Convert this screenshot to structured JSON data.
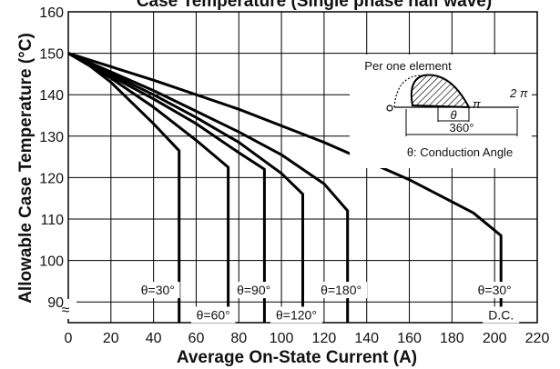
{
  "chart_data": {
    "type": "line",
    "title": "Case Temperature (Single phase half wave)",
    "xlabel": "Average On-State Current (A)",
    "ylabel": "Allowable Case Temperature (°C)",
    "xlim": [
      0,
      220
    ],
    "ylim": [
      85,
      160
    ],
    "x_ticks": [
      "0",
      "20",
      "40",
      "60",
      "80",
      "100",
      "120",
      "140",
      "160",
      "180",
      "200",
      "220"
    ],
    "y_ticks": [
      "90",
      "100",
      "110",
      "120",
      "130",
      "140",
      "150",
      "160"
    ],
    "axis_break_symbol": "≈",
    "grid": true,
    "series": [
      {
        "name": "θ=30°",
        "points": [
          [
            0,
            150
          ],
          [
            10,
            147
          ],
          [
            20,
            143
          ],
          [
            30,
            138
          ],
          [
            40,
            133
          ],
          [
            52,
            126.5
          ]
        ],
        "drop_x": 52
      },
      {
        "name": "θ=60°",
        "points": [
          [
            0,
            150
          ],
          [
            20,
            144
          ],
          [
            40,
            137
          ],
          [
            60,
            129
          ],
          [
            75,
            122.5
          ]
        ],
        "drop_x": 75
      },
      {
        "name": "θ=90°",
        "points": [
          [
            0,
            150
          ],
          [
            20,
            144.5
          ],
          [
            40,
            139
          ],
          [
            60,
            133
          ],
          [
            80,
            126
          ],
          [
            92,
            122
          ]
        ],
        "drop_x": 92
      },
      {
        "name": "θ=120°",
        "points": [
          [
            0,
            150
          ],
          [
            20,
            145
          ],
          [
            40,
            140
          ],
          [
            60,
            134.5
          ],
          [
            80,
            128.5
          ],
          [
            100,
            121
          ],
          [
            110,
            116
          ]
        ],
        "drop_x": 110
      },
      {
        "name": "θ=180°",
        "points": [
          [
            0,
            150
          ],
          [
            20,
            145.5
          ],
          [
            40,
            141
          ],
          [
            60,
            136
          ],
          [
            80,
            131
          ],
          [
            100,
            125.5
          ],
          [
            120,
            118.5
          ],
          [
            131,
            112
          ]
        ],
        "drop_x": 131
      },
      {
        "name": "D.C.",
        "points": [
          [
            0,
            150
          ],
          [
            40,
            143.5
          ],
          [
            80,
            136.5
          ],
          [
            120,
            128.5
          ],
          [
            160,
            119.5
          ],
          [
            190,
            111.5
          ],
          [
            203,
            106
          ]
        ],
        "drop_x": 203
      }
    ],
    "labels": [
      {
        "text": "θ=30°",
        "x": 42,
        "y": 92
      },
      {
        "text": "θ=60°",
        "x": 68,
        "y": 86
      },
      {
        "text": "θ=90°",
        "x": 87,
        "y": 92
      },
      {
        "text": "θ=120°",
        "x": 107,
        "y": 86
      },
      {
        "text": "θ=180°",
        "x": 128,
        "y": 92
      },
      {
        "text": "θ=30°",
        "x": 200,
        "y": 92
      },
      {
        "text": "D.C.",
        "x": 203,
        "y": 86
      }
    ],
    "inset": {
      "title": "Per one element",
      "pi_label": "π",
      "two_pi_label": "2 π",
      "theta_label": "θ",
      "angle_label": "360°",
      "zero_label": "o",
      "caption": "θ: Conduction Angle"
    }
  }
}
